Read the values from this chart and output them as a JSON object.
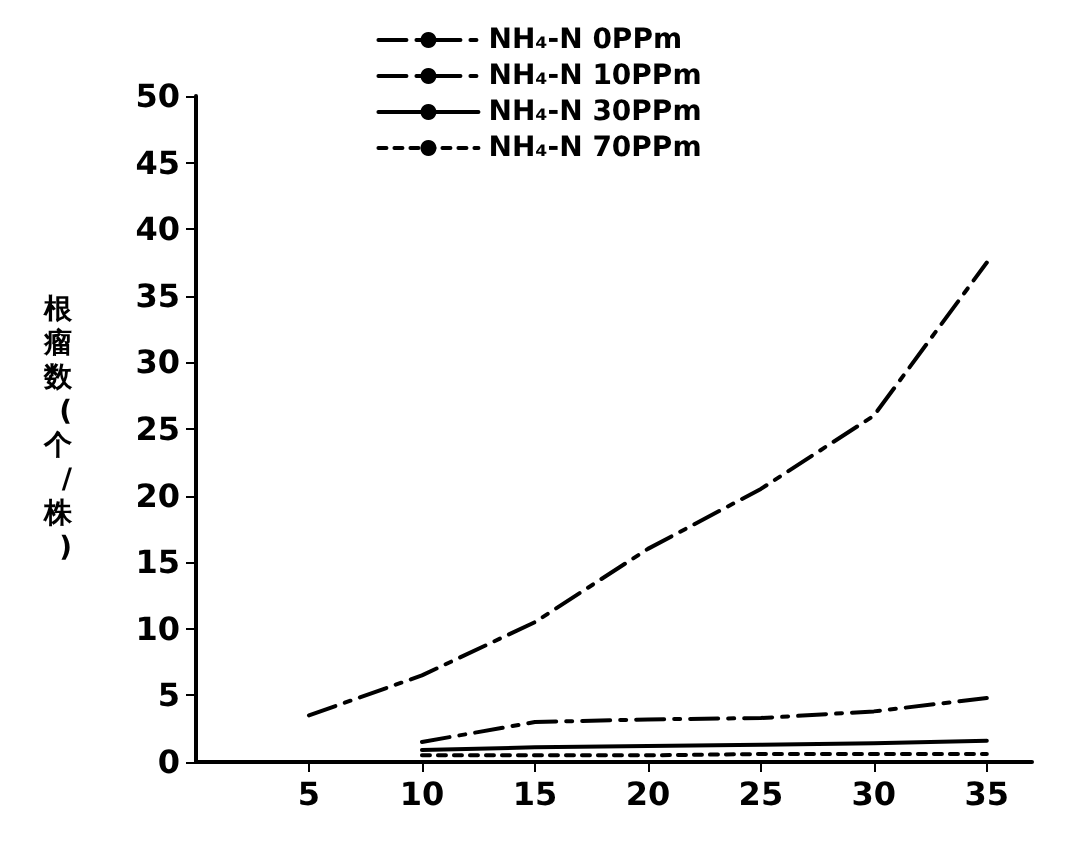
{
  "chart_data": {
    "type": "line",
    "ylabel": "根瘤数(个/株)",
    "x": [
      5,
      10,
      15,
      20,
      25,
      30,
      35
    ],
    "xlim": [
      0,
      37
    ],
    "xticks": [
      5,
      10,
      15,
      20,
      25,
      30,
      35
    ],
    "ylim": [
      0,
      50
    ],
    "yticks": [
      0,
      5,
      10,
      15,
      20,
      25,
      30,
      35,
      40,
      45,
      50
    ],
    "grid": false,
    "legend": "top",
    "marker": "none",
    "series": [
      {
        "name": "NH₄-N 0PPm",
        "color": "#000000",
        "line_style": "dashed",
        "values": [
          3.5,
          6.5,
          10.5,
          16,
          20.5,
          26,
          37.5
        ]
      },
      {
        "name": "NH₄-N 10PPm",
        "color": "#000000",
        "line_style": "dashed",
        "values": [
          null,
          1.5,
          3,
          3.2,
          3.3,
          3.8,
          4.8
        ]
      },
      {
        "name": "NH₄-N 30PPm",
        "color": "#000000",
        "line_style": "solid",
        "values": [
          null,
          0.9,
          1.1,
          1.2,
          1.3,
          1.4,
          1.6
        ]
      },
      {
        "name": "NH₄-N 70PPm",
        "color": "#000000",
        "line_style": "dotted",
        "values": [
          null,
          0.5,
          0.5,
          0.5,
          0.6,
          0.6,
          0.6
        ]
      }
    ]
  }
}
